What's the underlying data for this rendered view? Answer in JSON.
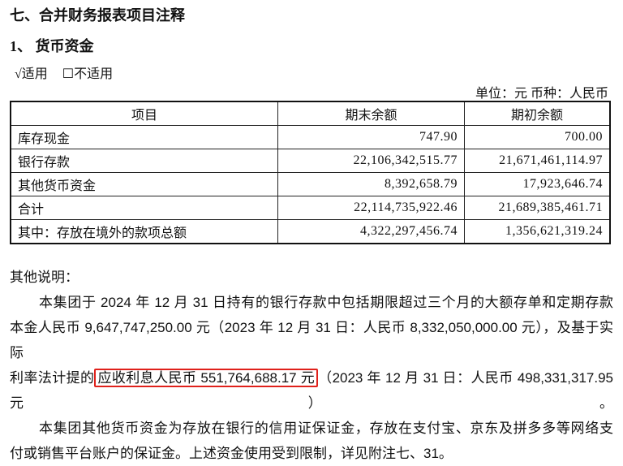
{
  "section_title": "七、合并财务报表项目注释",
  "subsection_title": "1、  货币资金",
  "applicability": {
    "applicable": "√适用",
    "not_applicable": "☐不适用"
  },
  "unit_line": "单位：元  币种：人民币",
  "table": {
    "headers": [
      "项目",
      "期末余额",
      "期初余额"
    ],
    "rows": [
      [
        "库存现金",
        "747.90",
        "700.00"
      ],
      [
        "银行存款",
        "22,106,342,515.77",
        "21,671,461,114.97"
      ],
      [
        "其他货币资金",
        "8,392,658.79",
        "17,923,646.74"
      ],
      [
        "合计",
        "22,114,735,922.46",
        "21,689,385,461.71"
      ],
      [
        "其中：存放在境外的款项总额",
        "4,322,297,456.74",
        "1,356,621,319.24"
      ]
    ]
  },
  "notes": {
    "label": "其他说明：",
    "lines": [
      "本集团于 2024 年 12 月 31 日持有的银行存款中包括期限超过三个月的大额存单和定期存款",
      "本金人民币 9,647,747,250.00 元（2023 年 12 月 31 日：人民币 8,332,050,000.00 元），及基于实际",
      "利率法计提的",
      "应收利息人民币 551,764,688.17 元",
      "（2023 年 12 月 31 日：人民币 498,331,317.95 元）。",
      "本集团其他货币资金为存放在银行的信用证保证金，存放在支付宝、京东及拼多多等网络支",
      "付或销售平台账户的保证金。上述资金使用受到限制，详见附注七、31。"
    ],
    "highlight_color": "#e0211b"
  }
}
